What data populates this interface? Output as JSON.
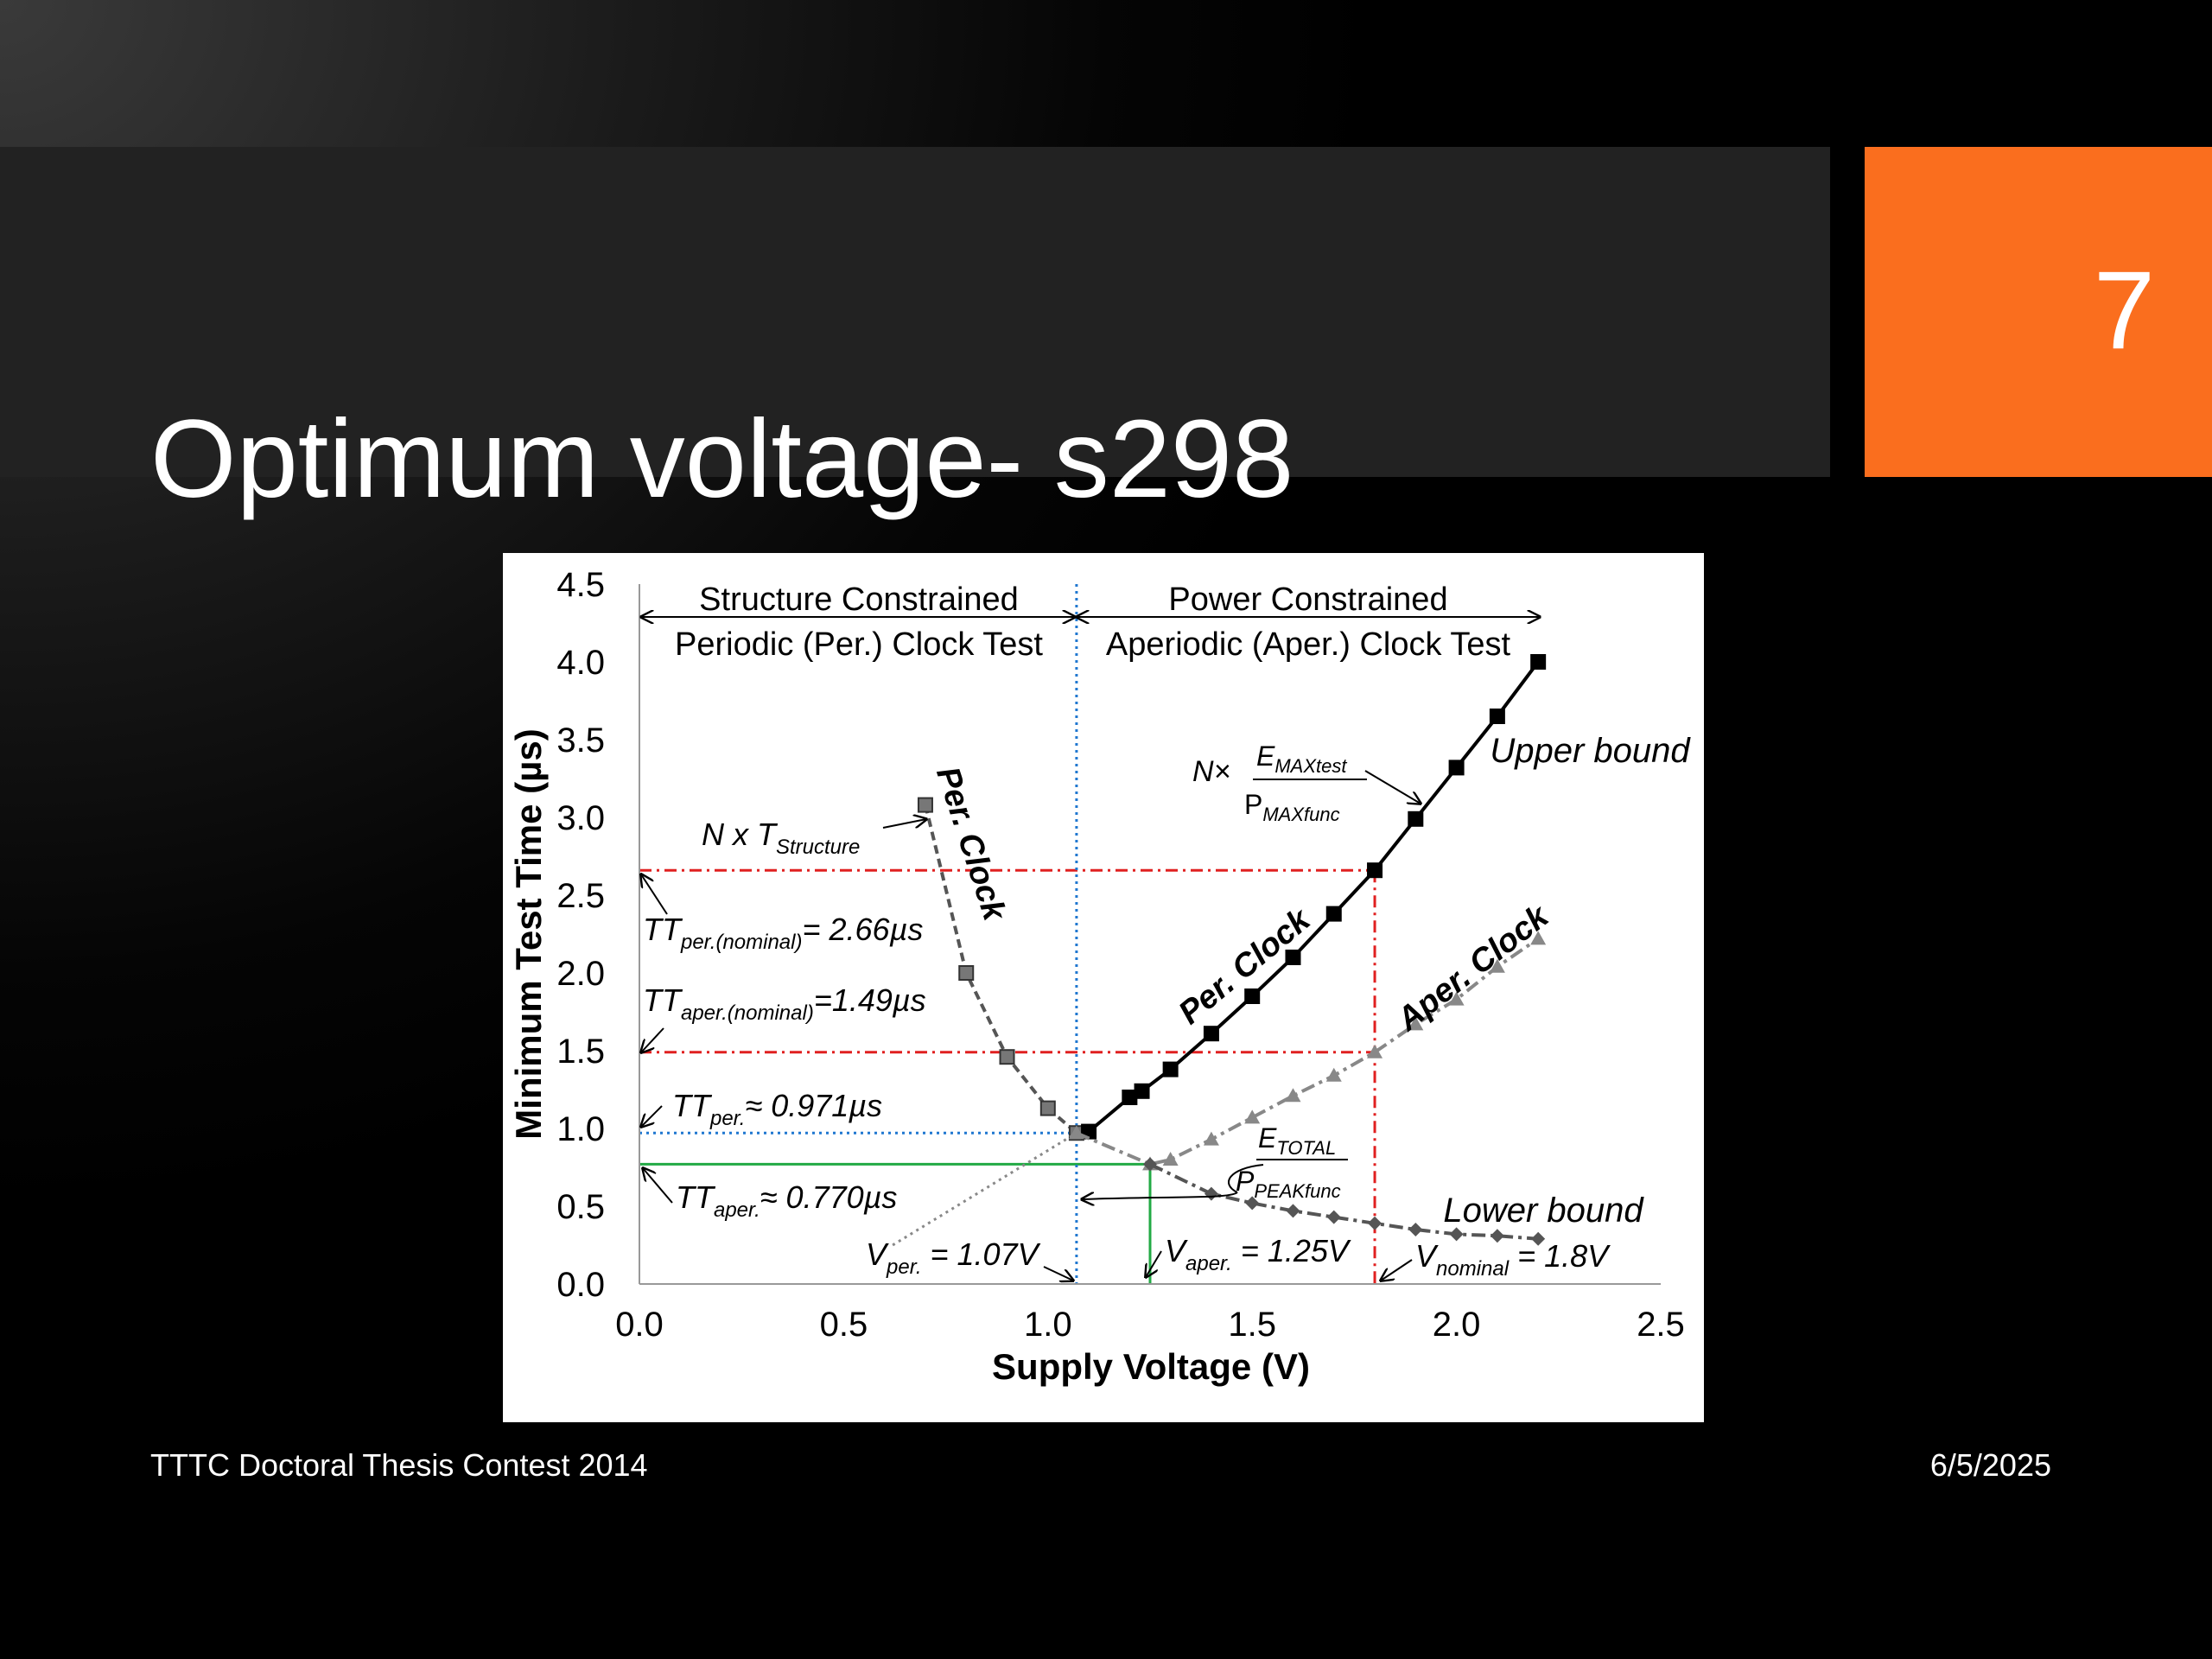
{
  "slide": {
    "title": "Optimum voltage- s298",
    "number": "7",
    "footer_left": "TTTC Doctoral Thesis Contest 2014",
    "footer_date": "6/5/2025",
    "accent_color": "#fa6e1e"
  },
  "chart_data": {
    "type": "line",
    "xlabel": "Supply Voltage (V)",
    "ylabel": "Minimum Test Time (µs)",
    "xlim": [
      0,
      2.5
    ],
    "ylim": [
      0,
      4.5
    ],
    "x_ticks": [
      "0.0",
      "0.5",
      "1.0",
      "1.5",
      "2.0",
      "2.5"
    ],
    "y_ticks": [
      "0.0",
      "0.5",
      "1.0",
      "1.5",
      "2.0",
      "2.5",
      "3.0",
      "3.5",
      "4.0",
      "4.5"
    ],
    "grid": false,
    "series": [
      {
        "name": "Per. Clock",
        "style": "gray-dashed-square",
        "x": [
          0.7,
          0.8,
          0.9,
          1.0,
          1.07
        ],
        "y": [
          3.08,
          2.0,
          1.46,
          1.13,
          0.971
        ]
      },
      {
        "name": "Per. Clock",
        "style": "black-solid-square",
        "x": [
          1.1,
          1.2,
          1.23,
          1.3,
          1.4,
          1.5,
          1.6,
          1.7,
          1.8,
          1.9,
          2.0,
          2.1,
          2.2
        ],
        "y": [
          0.98,
          1.2,
          1.24,
          1.38,
          1.61,
          1.85,
          2.1,
          2.38,
          2.66,
          2.99,
          3.32,
          3.65,
          4.0
        ]
      },
      {
        "name": "Aper. Clock",
        "style": "gray-dashdot-triangle",
        "x": [
          1.07,
          1.25,
          1.3,
          1.4,
          1.5,
          1.6,
          1.7,
          1.8,
          1.9,
          2.0,
          2.1,
          2.2
        ],
        "y": [
          0.97,
          0.77,
          0.8,
          0.93,
          1.07,
          1.21,
          1.34,
          1.49,
          1.67,
          1.83,
          2.04,
          2.22
        ]
      },
      {
        "name": "Lower bound",
        "style": "darkgray-dashdot-diamond",
        "x": [
          1.25,
          1.4,
          1.5,
          1.6,
          1.7,
          1.8,
          1.9,
          2.0,
          2.1,
          2.2
        ],
        "y": [
          0.77,
          0.58,
          0.52,
          0.47,
          0.43,
          0.39,
          0.35,
          0.32,
          0.31,
          0.29
        ]
      },
      {
        "name": "",
        "style": "gray-dotted",
        "x": [
          0.62,
          1.07
        ],
        "y": [
          0.25,
          0.971
        ]
      }
    ],
    "reference_lines": [
      {
        "id": "per-opt",
        "x": 1.07,
        "y": 0.971,
        "color": "#1f77d0",
        "style": "dotted"
      },
      {
        "id": "aper-opt",
        "x": 1.25,
        "y": 0.77,
        "color": "#22aa44",
        "style": "solid"
      },
      {
        "id": "nominal-per",
        "x": 1.8,
        "y": 2.66,
        "color": "#e02020",
        "style": "dashdot"
      },
      {
        "id": "nominal-aper",
        "x": 1.8,
        "y": 1.49,
        "color": "#e02020",
        "style": "dashdot"
      }
    ],
    "regions": {
      "left_title": "Structure Constrained",
      "left_subtitle": "Periodic (Per.) Clock Test",
      "right_title": "Power Constrained",
      "right_subtitle": "Aperiodic (Aper.) Clock Test"
    },
    "labels": {
      "upper_bound": "Upper bound",
      "lower_bound": "Lower bound",
      "per_clock_low": "Per. Clock",
      "per_clock_high": "Per. Clock",
      "aper_clock": "Aper. Clock",
      "n_x": "N x T",
      "n_x_sub": "Structure",
      "upper_n": "N×",
      "emax": "E",
      "emax_sub": "MAXtest",
      "pmax": "P",
      "pmax_sub": "MAXfunc",
      "etotal": "E",
      "etotal_sub": "TOTAL",
      "ppeak": "P",
      "ppeak_sub": "PEAKfunc",
      "tt_per_nominal": "TT",
      "tt_per_nominal_sub": "per.(nominal)",
      "tt_per_nominal_val": "= 2.66µs",
      "tt_aper_nominal": "TT",
      "tt_aper_nominal_sub": "aper.(nominal)",
      "tt_aper_nominal_val": "=1.49µs",
      "tt_per": "TT",
      "tt_per_sub": "per.",
      "tt_per_val": "≈ 0.971µs",
      "tt_aper": "TT",
      "tt_aper_sub": "aper.",
      "tt_aper_val": "≈ 0.770µs",
      "v_per": "V",
      "v_per_sub": "per.",
      "v_per_val": " = 1.07V",
      "v_aper": "V",
      "v_aper_sub": "aper.",
      "v_aper_val": " = 1.25V",
      "v_nominal": "V",
      "v_nominal_sub": "nominal",
      "v_nominal_val": " = 1.8V"
    }
  }
}
